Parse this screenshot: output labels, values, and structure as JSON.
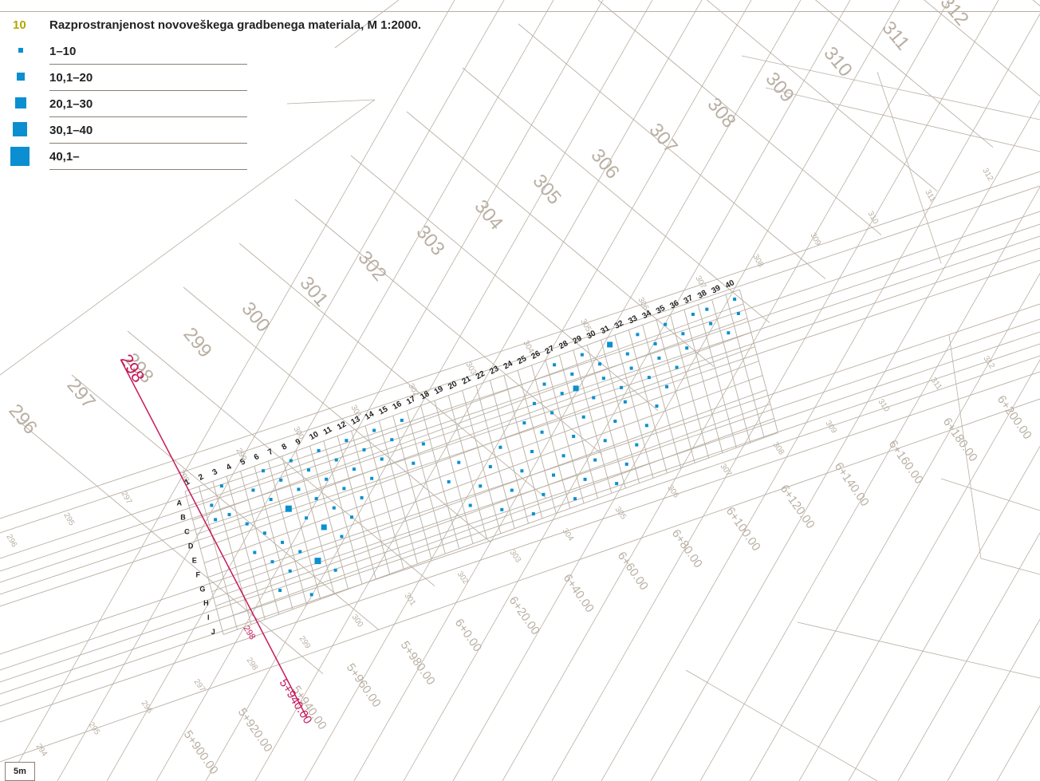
{
  "figure": {
    "number": "10",
    "title": "Razprostranjenost novoveškega gradbenega materiala, M 1:2000."
  },
  "legend": [
    {
      "label": "1–10"
    },
    {
      "label": "10,1–20"
    },
    {
      "label": "20,1–30"
    },
    {
      "label": "30,1–40"
    },
    {
      "label": "40,1–"
    }
  ],
  "scale_label": "5m",
  "colors": {
    "point": "#0b8fd0",
    "base": "#b9afa3",
    "profile": "#c8195c",
    "ink": "#222222"
  },
  "grid": {
    "columns": [
      "1",
      "2",
      "3",
      "4",
      "5",
      "6",
      "7",
      "8",
      "9",
      "10",
      "11",
      "12",
      "13",
      "14",
      "15",
      "16",
      "17",
      "18",
      "19",
      "20",
      "21",
      "22",
      "23",
      "24",
      "25",
      "26",
      "27",
      "28",
      "29",
      "30",
      "31",
      "32",
      "33",
      "34",
      "35",
      "36",
      "37",
      "38",
      "39",
      "40"
    ],
    "rows": [
      "A",
      "B",
      "C",
      "D",
      "E",
      "F",
      "G",
      "H",
      "I",
      "J"
    ]
  },
  "profile": {
    "label_top": "298",
    "label_bottom": "298",
    "station": "5+940.00"
  },
  "big_profiles": [
    "296",
    "297",
    "298",
    "299",
    "300",
    "301",
    "302",
    "303",
    "304",
    "305",
    "306",
    "307",
    "308",
    "309",
    "310",
    "311",
    "312"
  ],
  "small_profiles": [
    "296",
    "295",
    "297",
    "298",
    "299",
    "300",
    "301",
    "302",
    "303",
    "304",
    "305",
    "306",
    "307",
    "308",
    "309",
    "310",
    "311",
    "312"
  ],
  "bottom_profiles": [
    "294",
    "295",
    "296",
    "297",
    "298",
    "299",
    "300",
    "301",
    "302",
    "303",
    "304",
    "305",
    "306",
    "307",
    "308",
    "309",
    "310",
    "311",
    "312"
  ],
  "stations": [
    "5+900.00",
    "5+920.00",
    "5+940.00",
    "5+960.00",
    "5+980.00",
    "6+0.00",
    "6+20.00",
    "6+40.00",
    "6+60.00",
    "6+80.00",
    "6+100.00",
    "6+120.00",
    "6+140.00",
    "6+160.00",
    "6+180.00",
    "6+200.00"
  ],
  "find_cells": [
    {
      "c": 1,
      "r": 1,
      "n": 1
    },
    {
      "c": 1,
      "r": 2,
      "n": 1
    },
    {
      "c": 2,
      "r": 0,
      "n": 1
    },
    {
      "c": 2,
      "r": 2,
      "n": 1
    },
    {
      "c": 3,
      "r": 3,
      "n": 1
    },
    {
      "c": 3,
      "r": 5,
      "n": 1
    },
    {
      "c": 4,
      "r": 1,
      "n": 1
    },
    {
      "c": 4,
      "r": 4,
      "n": 1
    },
    {
      "c": 4,
      "r": 6,
      "n": 1
    },
    {
      "c": 4,
      "r": 8,
      "n": 1
    },
    {
      "c": 5,
      "r": 0,
      "n": 1
    },
    {
      "c": 5,
      "r": 2,
      "n": 1
    },
    {
      "c": 5,
      "r": 5,
      "n": 1
    },
    {
      "c": 5,
      "r": 7,
      "n": 1
    },
    {
      "c": 6,
      "r": 1,
      "n": 1
    },
    {
      "c": 6,
      "r": 3,
      "n": 3
    },
    {
      "c": 6,
      "r": 6,
      "n": 1
    },
    {
      "c": 6,
      "r": 9,
      "n": 1
    },
    {
      "c": 7,
      "r": 0,
      "n": 1
    },
    {
      "c": 7,
      "r": 2,
      "n": 1
    },
    {
      "c": 7,
      "r": 4,
      "n": 1
    },
    {
      "c": 7,
      "r": 7,
      "n": 3
    },
    {
      "c": 8,
      "r": 1,
      "n": 1
    },
    {
      "c": 8,
      "r": 3,
      "n": 1
    },
    {
      "c": 8,
      "r": 5,
      "n": 2
    },
    {
      "c": 8,
      "r": 8,
      "n": 1
    },
    {
      "c": 9,
      "r": 0,
      "n": 1
    },
    {
      "c": 9,
      "r": 2,
      "n": 1
    },
    {
      "c": 9,
      "r": 4,
      "n": 1
    },
    {
      "c": 9,
      "r": 6,
      "n": 1
    },
    {
      "c": 10,
      "r": 1,
      "n": 1
    },
    {
      "c": 10,
      "r": 3,
      "n": 1
    },
    {
      "c": 10,
      "r": 5,
      "n": 1
    },
    {
      "c": 11,
      "r": 0,
      "n": 1
    },
    {
      "c": 11,
      "r": 2,
      "n": 1
    },
    {
      "c": 11,
      "r": 4,
      "n": 1
    },
    {
      "c": 12,
      "r": 1,
      "n": 1
    },
    {
      "c": 12,
      "r": 3,
      "n": 1
    },
    {
      "c": 13,
      "r": 0,
      "n": 1
    },
    {
      "c": 13,
      "r": 2,
      "n": 1
    },
    {
      "c": 14,
      "r": 1,
      "n": 1
    },
    {
      "c": 15,
      "r": 0,
      "n": 1
    },
    {
      "c": 15,
      "r": 3,
      "n": 1
    },
    {
      "c": 16,
      "r": 2,
      "n": 1
    },
    {
      "c": 17,
      "r": 5,
      "n": 1
    },
    {
      "c": 18,
      "r": 4,
      "n": 1
    },
    {
      "c": 18,
      "r": 7,
      "n": 1
    },
    {
      "c": 19,
      "r": 6,
      "n": 1
    },
    {
      "c": 20,
      "r": 5,
      "n": 1
    },
    {
      "c": 20,
      "r": 8,
      "n": 1
    },
    {
      "c": 21,
      "r": 4,
      "n": 1
    },
    {
      "c": 21,
      "r": 7,
      "n": 1
    },
    {
      "c": 22,
      "r": 6,
      "n": 1
    },
    {
      "c": 22,
      "r": 9,
      "n": 1
    },
    {
      "c": 23,
      "r": 3,
      "n": 1
    },
    {
      "c": 23,
      "r": 5,
      "n": 1
    },
    {
      "c": 23,
      "r": 8,
      "n": 1
    },
    {
      "c": 24,
      "r": 2,
      "n": 1
    },
    {
      "c": 24,
      "r": 4,
      "n": 1
    },
    {
      "c": 24,
      "r": 7,
      "n": 1
    },
    {
      "c": 25,
      "r": 1,
      "n": 1
    },
    {
      "c": 25,
      "r": 3,
      "n": 1
    },
    {
      "c": 25,
      "r": 6,
      "n": 1
    },
    {
      "c": 25,
      "r": 9,
      "n": 1
    },
    {
      "c": 26,
      "r": 0,
      "n": 1
    },
    {
      "c": 26,
      "r": 2,
      "n": 1
    },
    {
      "c": 26,
      "r": 5,
      "n": 1
    },
    {
      "c": 26,
      "r": 8,
      "n": 1
    },
    {
      "c": 27,
      "r": 1,
      "n": 1
    },
    {
      "c": 27,
      "r": 2,
      "n": 2
    },
    {
      "c": 27,
      "r": 4,
      "n": 1
    },
    {
      "c": 27,
      "r": 7,
      "n": 1
    },
    {
      "c": 28,
      "r": 0,
      "n": 1
    },
    {
      "c": 28,
      "r": 3,
      "n": 1
    },
    {
      "c": 28,
      "r": 6,
      "n": 1
    },
    {
      "c": 28,
      "r": 9,
      "n": 1
    },
    {
      "c": 29,
      "r": 1,
      "n": 1
    },
    {
      "c": 29,
      "r": 2,
      "n": 1
    },
    {
      "c": 29,
      "r": 5,
      "n": 1
    },
    {
      "c": 29,
      "r": 8,
      "n": 1
    },
    {
      "c": 30,
      "r": 0,
      "n": 2
    },
    {
      "c": 30,
      "r": 3,
      "n": 1
    },
    {
      "c": 30,
      "r": 4,
      "n": 1
    },
    {
      "c": 30,
      "r": 7,
      "n": 1
    },
    {
      "c": 31,
      "r": 1,
      "n": 1
    },
    {
      "c": 31,
      "r": 2,
      "n": 1
    },
    {
      "c": 31,
      "r": 6,
      "n": 1
    },
    {
      "c": 32,
      "r": 0,
      "n": 1
    },
    {
      "c": 32,
      "r": 3,
      "n": 1
    },
    {
      "c": 32,
      "r": 5,
      "n": 1
    },
    {
      "c": 33,
      "r": 1,
      "n": 1
    },
    {
      "c": 33,
      "r": 2,
      "n": 1
    },
    {
      "c": 33,
      "r": 4,
      "n": 1
    },
    {
      "c": 34,
      "r": 0,
      "n": 1
    },
    {
      "c": 34,
      "r": 3,
      "n": 1
    },
    {
      "c": 35,
      "r": 1,
      "n": 1
    },
    {
      "c": 35,
      "r": 2,
      "n": 1
    },
    {
      "c": 36,
      "r": 0,
      "n": 1
    },
    {
      "c": 37,
      "r": 0,
      "n": 1
    },
    {
      "c": 37,
      "r": 1,
      "n": 1
    },
    {
      "c": 38,
      "r": 2,
      "n": 1
    },
    {
      "c": 39,
      "r": 0,
      "n": 1
    },
    {
      "c": 39,
      "r": 1,
      "n": 1
    }
  ]
}
